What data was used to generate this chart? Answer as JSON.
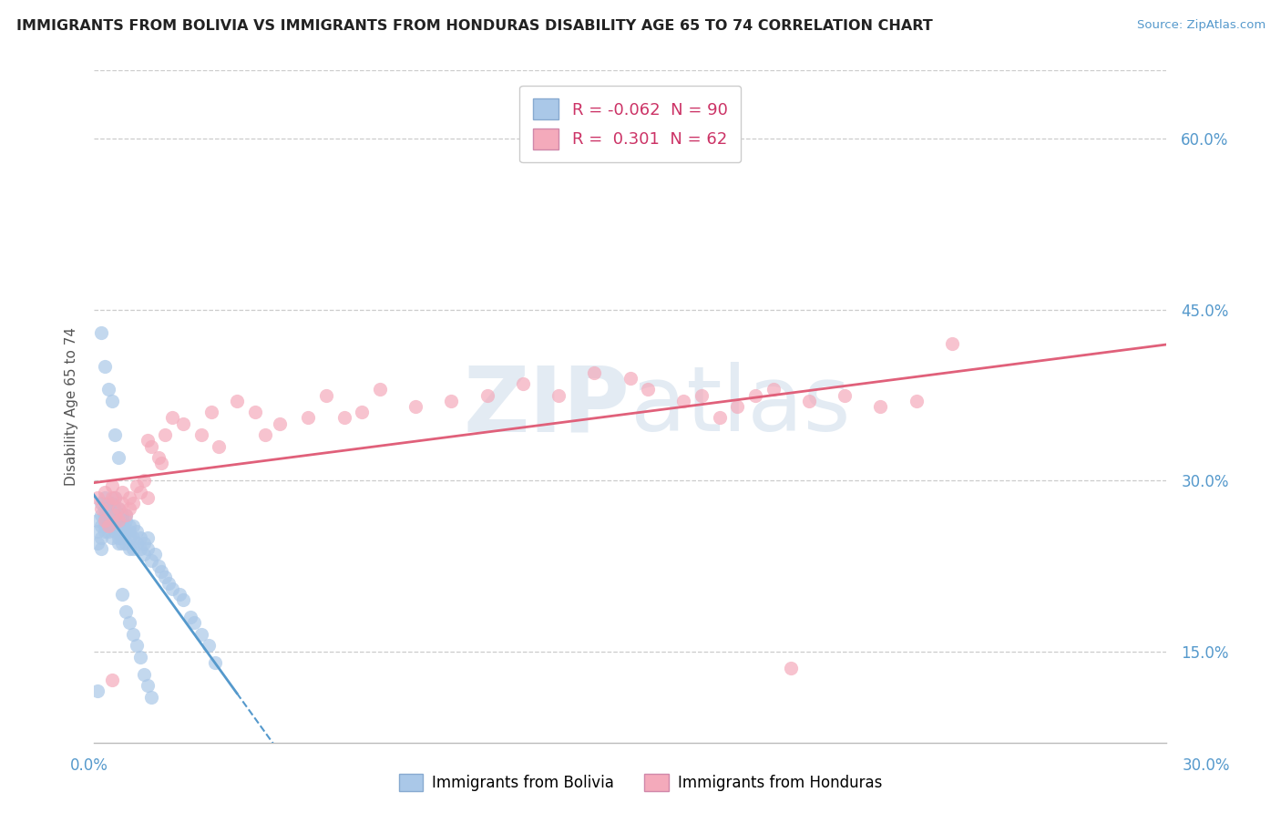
{
  "title": "IMMIGRANTS FROM BOLIVIA VS IMMIGRANTS FROM HONDURAS DISABILITY AGE 65 TO 74 CORRELATION CHART",
  "source_text": "Source: ZipAtlas.com",
  "ylabel": "Disability Age 65 to 74",
  "yticks": [
    0.15,
    0.3,
    0.45,
    0.6
  ],
  "ytick_labels": [
    "15.0%",
    "30.0%",
    "45.0%",
    "60.0%"
  ],
  "xlim": [
    0.0,
    0.3
  ],
  "ylim": [
    0.07,
    0.66
  ],
  "bolivia_color": "#aac8e8",
  "bolivia_line_color": "#5599cc",
  "honduras_color": "#f4aabb",
  "honduras_line_color": "#e0607a",
  "watermark_color": "#d0dde8",
  "grid_color": "#cccccc",
  "axis_label_color": "#5599cc",
  "title_color": "#222222",
  "legend_bolivia_r": "-0.062",
  "legend_bolivia_n": "90",
  "legend_honduras_r": "0.301",
  "legend_honduras_n": "62",
  "bolivia_scatter_x": [
    0.001,
    0.001,
    0.001,
    0.002,
    0.002,
    0.002,
    0.002,
    0.002,
    0.003,
    0.003,
    0.003,
    0.003,
    0.003,
    0.003,
    0.004,
    0.004,
    0.004,
    0.004,
    0.004,
    0.005,
    0.005,
    0.005,
    0.005,
    0.005,
    0.006,
    0.006,
    0.006,
    0.006,
    0.006,
    0.006,
    0.007,
    0.007,
    0.007,
    0.007,
    0.007,
    0.007,
    0.008,
    0.008,
    0.008,
    0.008,
    0.008,
    0.009,
    0.009,
    0.009,
    0.009,
    0.01,
    0.01,
    0.01,
    0.01,
    0.011,
    0.011,
    0.011,
    0.012,
    0.012,
    0.013,
    0.013,
    0.014,
    0.014,
    0.015,
    0.015,
    0.016,
    0.017,
    0.018,
    0.019,
    0.02,
    0.021,
    0.022,
    0.024,
    0.025,
    0.027,
    0.028,
    0.03,
    0.032,
    0.034,
    0.002,
    0.003,
    0.001,
    0.004,
    0.005,
    0.006,
    0.007,
    0.008,
    0.009,
    0.01,
    0.011,
    0.012,
    0.013,
    0.014,
    0.015,
    0.016
  ],
  "bolivia_scatter_y": [
    0.265,
    0.255,
    0.245,
    0.27,
    0.26,
    0.25,
    0.24,
    0.28,
    0.275,
    0.265,
    0.255,
    0.285,
    0.27,
    0.26,
    0.275,
    0.265,
    0.255,
    0.28,
    0.27,
    0.27,
    0.26,
    0.25,
    0.28,
    0.265,
    0.275,
    0.265,
    0.255,
    0.285,
    0.27,
    0.26,
    0.255,
    0.265,
    0.245,
    0.275,
    0.26,
    0.25,
    0.26,
    0.25,
    0.27,
    0.245,
    0.265,
    0.255,
    0.27,
    0.245,
    0.265,
    0.26,
    0.25,
    0.24,
    0.255,
    0.26,
    0.25,
    0.24,
    0.255,
    0.245,
    0.25,
    0.24,
    0.245,
    0.235,
    0.25,
    0.24,
    0.23,
    0.235,
    0.225,
    0.22,
    0.215,
    0.21,
    0.205,
    0.2,
    0.195,
    0.18,
    0.175,
    0.165,
    0.155,
    0.14,
    0.43,
    0.4,
    0.115,
    0.38,
    0.37,
    0.34,
    0.32,
    0.2,
    0.185,
    0.175,
    0.165,
    0.155,
    0.145,
    0.13,
    0.12,
    0.11
  ],
  "honduras_scatter_x": [
    0.001,
    0.002,
    0.003,
    0.003,
    0.004,
    0.004,
    0.005,
    0.005,
    0.006,
    0.006,
    0.007,
    0.007,
    0.008,
    0.008,
    0.009,
    0.01,
    0.01,
    0.011,
    0.012,
    0.013,
    0.014,
    0.015,
    0.015,
    0.016,
    0.018,
    0.019,
    0.02,
    0.022,
    0.025,
    0.03,
    0.033,
    0.035,
    0.04,
    0.045,
    0.048,
    0.052,
    0.06,
    0.065,
    0.07,
    0.075,
    0.08,
    0.09,
    0.1,
    0.11,
    0.12,
    0.13,
    0.14,
    0.15,
    0.155,
    0.165,
    0.17,
    0.175,
    0.18,
    0.185,
    0.19,
    0.2,
    0.21,
    0.22,
    0.23,
    0.24,
    0.005,
    0.195
  ],
  "honduras_scatter_y": [
    0.285,
    0.275,
    0.29,
    0.265,
    0.28,
    0.26,
    0.285,
    0.295,
    0.27,
    0.285,
    0.275,
    0.265,
    0.29,
    0.28,
    0.27,
    0.275,
    0.285,
    0.28,
    0.295,
    0.29,
    0.3,
    0.285,
    0.335,
    0.33,
    0.32,
    0.315,
    0.34,
    0.355,
    0.35,
    0.34,
    0.36,
    0.33,
    0.37,
    0.36,
    0.34,
    0.35,
    0.355,
    0.375,
    0.355,
    0.36,
    0.38,
    0.365,
    0.37,
    0.375,
    0.385,
    0.375,
    0.395,
    0.39,
    0.38,
    0.37,
    0.375,
    0.355,
    0.365,
    0.375,
    0.38,
    0.37,
    0.375,
    0.365,
    0.37,
    0.42,
    0.125,
    0.135
  ]
}
